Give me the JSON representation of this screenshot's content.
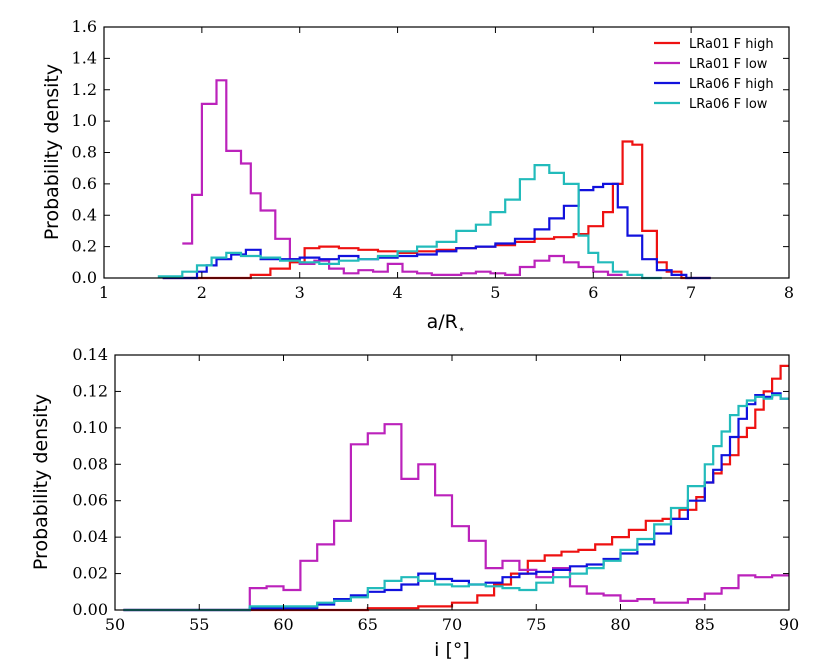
{
  "chart_data": [
    {
      "type": "histogram",
      "xlabel": "a/R",
      "xlabel_sub": "⋆",
      "ylabel": "Probability density",
      "xlim": [
        1,
        8
      ],
      "ylim": [
        0,
        1.6
      ],
      "xticks": [
        1,
        2,
        3,
        4,
        5,
        6,
        7,
        8
      ],
      "xtick_labels": [
        "1",
        "2",
        "3",
        "4",
        "5",
        "6",
        "7",
        "8"
      ],
      "yticks": [
        0,
        0.2,
        0.4,
        0.6,
        0.8,
        1.0,
        1.2,
        1.4,
        1.6
      ],
      "ytick_labels": [
        "0.0",
        "0.2",
        "0.4",
        "0.6",
        "0.8",
        "1.0",
        "1.2",
        "1.4",
        "1.6"
      ],
      "legend": {
        "position": "top-right",
        "entries": [
          "LRa01 F high",
          "LRa01 F low",
          "LRa06 F high",
          "LRa06 F low"
        ]
      },
      "series": [
        {
          "name": "LRa01 F high",
          "color": "#ee1111",
          "edges": [
            1.6,
            2.5,
            2.7,
            2.9,
            3.05,
            3.2,
            3.4,
            3.6,
            3.8,
            4.0,
            4.2,
            4.4,
            4.6,
            4.8,
            5.0,
            5.2,
            5.4,
            5.6,
            5.8,
            5.95,
            6.1,
            6.2,
            6.3,
            6.4,
            6.5,
            6.65,
            6.75,
            6.9,
            7.2
          ],
          "values": [
            0.0,
            0.02,
            0.06,
            0.1,
            0.19,
            0.2,
            0.19,
            0.18,
            0.17,
            0.16,
            0.17,
            0.18,
            0.19,
            0.2,
            0.21,
            0.23,
            0.25,
            0.26,
            0.28,
            0.33,
            0.42,
            0.6,
            0.87,
            0.85,
            0.3,
            0.1,
            0.04,
            0.0
          ]
        },
        {
          "name": "LRa01 F low",
          "color": "#bb22bb",
          "edges": [
            1.8,
            1.9,
            2.0,
            2.15,
            2.25,
            2.4,
            2.5,
            2.6,
            2.75,
            2.9,
            3.0,
            3.15,
            3.3,
            3.45,
            3.6,
            3.75,
            3.9,
            4.05,
            4.2,
            4.35,
            4.5,
            4.65,
            4.8,
            4.95,
            5.1,
            5.25,
            5.4,
            5.55,
            5.7,
            5.85,
            6.0,
            6.15,
            6.3
          ],
          "values": [
            0.22,
            0.53,
            1.11,
            1.26,
            0.81,
            0.73,
            0.54,
            0.43,
            0.25,
            0.12,
            0.09,
            0.11,
            0.06,
            0.03,
            0.05,
            0.04,
            0.09,
            0.04,
            0.03,
            0.02,
            0.02,
            0.03,
            0.04,
            0.03,
            0.02,
            0.07,
            0.11,
            0.14,
            0.1,
            0.07,
            0.04,
            0.02
          ]
        },
        {
          "name": "LRa06 F high",
          "color": "#1111dd",
          "edges": [
            1.6,
            1.95,
            2.05,
            2.15,
            2.3,
            2.45,
            2.6,
            2.8,
            3.0,
            3.2,
            3.4,
            3.6,
            3.8,
            4.0,
            4.2,
            4.4,
            4.6,
            4.8,
            5.0,
            5.2,
            5.4,
            5.55,
            5.7,
            5.85,
            6.0,
            6.1,
            6.25,
            6.35,
            6.5,
            6.65,
            6.8,
            6.95,
            7.2
          ],
          "values": [
            0.0,
            0.04,
            0.08,
            0.12,
            0.15,
            0.18,
            0.12,
            0.12,
            0.13,
            0.12,
            0.14,
            0.12,
            0.13,
            0.14,
            0.15,
            0.17,
            0.19,
            0.2,
            0.22,
            0.25,
            0.31,
            0.38,
            0.46,
            0.56,
            0.58,
            0.6,
            0.45,
            0.27,
            0.12,
            0.05,
            0.02,
            0.0
          ]
        },
        {
          "name": "LRa06 F low",
          "color": "#22bbbb",
          "edges": [
            1.55,
            1.8,
            1.95,
            2.1,
            2.25,
            2.4,
            2.6,
            2.8,
            3.0,
            3.2,
            3.4,
            3.6,
            3.8,
            4.0,
            4.2,
            4.4,
            4.6,
            4.8,
            4.95,
            5.1,
            5.25,
            5.4,
            5.55,
            5.7,
            5.85,
            5.95,
            6.05,
            6.2,
            6.35,
            6.5,
            6.7
          ],
          "values": [
            0.01,
            0.04,
            0.08,
            0.13,
            0.16,
            0.14,
            0.13,
            0.11,
            0.1,
            0.09,
            0.11,
            0.12,
            0.14,
            0.17,
            0.2,
            0.23,
            0.3,
            0.34,
            0.42,
            0.5,
            0.63,
            0.72,
            0.67,
            0.6,
            0.27,
            0.16,
            0.1,
            0.04,
            0.02,
            0.0
          ]
        }
      ]
    },
    {
      "type": "histogram",
      "xlabel": "i [°]",
      "ylabel": "Probability density",
      "xlim": [
        50,
        90
      ],
      "ylim": [
        0,
        0.14
      ],
      "xticks": [
        50,
        55,
        60,
        65,
        70,
        75,
        80,
        85,
        90
      ],
      "xtick_labels": [
        "50",
        "55",
        "60",
        "65",
        "70",
        "75",
        "80",
        "85",
        "90"
      ],
      "yticks": [
        0,
        0.02,
        0.04,
        0.06,
        0.08,
        0.1,
        0.12,
        0.14
      ],
      "ytick_labels": [
        "0.00",
        "0.02",
        "0.04",
        "0.06",
        "0.08",
        "0.10",
        "0.12",
        "0.14"
      ],
      "series": [
        {
          "name": "LRa01 F high",
          "color": "#ee1111",
          "edges": [
            50.5,
            65.0,
            68.0,
            70.0,
            71.5,
            72.5,
            73.5,
            74.5,
            75.5,
            76.5,
            77.5,
            78.5,
            79.5,
            80.5,
            81.5,
            82.5,
            83.5,
            84.5,
            85.0,
            85.5,
            86.0,
            86.5,
            87.0,
            87.5,
            88.0,
            88.5,
            89.0,
            89.5,
            90.0
          ],
          "values": [
            0.0,
            0.001,
            0.002,
            0.004,
            0.008,
            0.014,
            0.02,
            0.027,
            0.03,
            0.032,
            0.033,
            0.036,
            0.04,
            0.044,
            0.049,
            0.05,
            0.055,
            0.062,
            0.07,
            0.075,
            0.08,
            0.085,
            0.095,
            0.1,
            0.11,
            0.12,
            0.127,
            0.134
          ]
        },
        {
          "name": "LRa01 F low",
          "color": "#bb22bb",
          "edges": [
            50.5,
            58.0,
            59.0,
            60.0,
            61.0,
            62.0,
            63.0,
            64.0,
            65.0,
            66.0,
            67.0,
            68.0,
            69.0,
            70.0,
            71.0,
            72.0,
            73.0,
            74.0,
            75.0,
            76.0,
            77.0,
            78.0,
            79.0,
            80.0,
            81.0,
            82.0,
            83.0,
            84.0,
            85.0,
            86.0,
            87.0,
            88.0,
            89.0,
            90.0
          ],
          "values": [
            0.0,
            0.012,
            0.013,
            0.011,
            0.027,
            0.036,
            0.049,
            0.091,
            0.097,
            0.102,
            0.072,
            0.08,
            0.063,
            0.046,
            0.038,
            0.023,
            0.027,
            0.022,
            0.018,
            0.023,
            0.013,
            0.009,
            0.008,
            0.005,
            0.006,
            0.004,
            0.004,
            0.006,
            0.009,
            0.012,
            0.019,
            0.018,
            0.019
          ]
        },
        {
          "name": "LRa06 F high",
          "color": "#1111dd",
          "edges": [
            50.5,
            58.0,
            62.0,
            63.0,
            64.0,
            65.0,
            66.0,
            67.0,
            68.0,
            69.0,
            70.0,
            71.0,
            72.0,
            73.0,
            74.0,
            75.0,
            76.0,
            77.0,
            78.0,
            79.0,
            80.0,
            81.0,
            82.0,
            83.0,
            84.0,
            85.0,
            85.5,
            86.0,
            86.5,
            87.0,
            87.5,
            88.0,
            88.5,
            89.0,
            89.5,
            90.0
          ],
          "values": [
            0.0,
            0.001,
            0.003,
            0.006,
            0.008,
            0.01,
            0.011,
            0.014,
            0.02,
            0.017,
            0.016,
            0.014,
            0.015,
            0.018,
            0.02,
            0.021,
            0.022,
            0.024,
            0.025,
            0.028,
            0.031,
            0.036,
            0.042,
            0.05,
            0.06,
            0.07,
            0.077,
            0.085,
            0.095,
            0.105,
            0.113,
            0.118,
            0.117,
            0.119,
            0.116
          ]
        },
        {
          "name": "LRa06 F low",
          "color": "#22bbbb",
          "edges": [
            50.5,
            58.0,
            62.0,
            63.0,
            64.0,
            65.0,
            66.0,
            67.0,
            68.0,
            69.0,
            70.0,
            71.0,
            72.0,
            73.0,
            74.0,
            75.0,
            76.0,
            77.0,
            78.0,
            79.0,
            80.0,
            81.0,
            82.0,
            83.0,
            84.0,
            85.0,
            85.5,
            86.0,
            86.5,
            87.0,
            87.5,
            88.0,
            88.5,
            89.0,
            89.5,
            90.0
          ],
          "values": [
            0.0,
            0.002,
            0.004,
            0.005,
            0.007,
            0.012,
            0.016,
            0.018,
            0.016,
            0.014,
            0.013,
            0.014,
            0.013,
            0.012,
            0.011,
            0.015,
            0.018,
            0.02,
            0.023,
            0.027,
            0.033,
            0.039,
            0.047,
            0.056,
            0.068,
            0.08,
            0.09,
            0.098,
            0.107,
            0.112,
            0.115,
            0.117,
            0.116,
            0.118,
            0.116
          ]
        }
      ]
    }
  ]
}
